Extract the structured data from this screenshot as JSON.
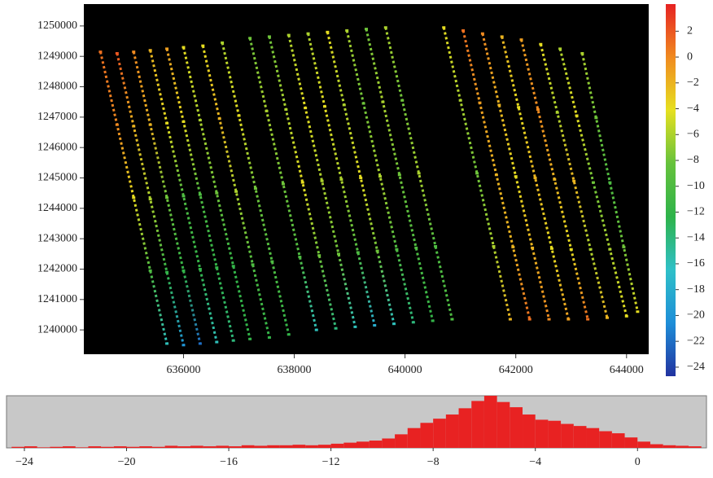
{
  "chart_data": [
    {
      "type": "scatter",
      "background": "#000000",
      "xlim": [
        634200,
        644400
      ],
      "ylim": [
        1239200,
        1250720
      ],
      "xticks": [
        636000,
        638000,
        640000,
        642000,
        644000
      ],
      "yticks": [
        1240000,
        1241000,
        1242000,
        1243000,
        1244000,
        1245000,
        1246000,
        1247000,
        1248000,
        1249000,
        1250000
      ],
      "colorbar": {
        "clim": [
          -24.7,
          4.1
        ],
        "colormap": [
          "#2233a0",
          "#1e8ed8",
          "#2fc0c8",
          "#2eb34a",
          "#66c23c",
          "#e6e020",
          "#f08a20",
          "#e62222"
        ],
        "ticks": [
          2,
          0,
          {
            "value": -2,
            "label": "−2"
          },
          {
            "value": -4,
            "label": "−4"
          },
          {
            "value": -6,
            "label": "−6"
          },
          {
            "value": -8,
            "label": "−8"
          },
          {
            "value": -10,
            "label": "−10"
          },
          {
            "value": -12,
            "label": "−12"
          },
          {
            "value": -14,
            "label": "−14"
          },
          {
            "value": -16,
            "label": "−16"
          },
          {
            "value": -18,
            "label": "−18"
          },
          {
            "value": -20,
            "label": "−20"
          },
          {
            "value": -22,
            "label": "−22"
          },
          {
            "value": -24,
            "label": "−24"
          }
        ]
      },
      "series": [
        {
          "x": [
            634500,
            634800,
            635100,
            635400,
            635700
          ],
          "y": [
            1249150,
            1246750,
            1244350,
            1241950,
            1239550
          ],
          "values": [
            1,
            0,
            -4,
            -10,
            -16
          ]
        },
        {
          "x": [
            634800,
            635100,
            635400,
            635700,
            636000
          ],
          "y": [
            1249100,
            1246700,
            1244300,
            1241900,
            1239500
          ],
          "values": [
            2,
            -2,
            -6,
            -12,
            -20
          ]
        },
        {
          "x": [
            635100,
            635400,
            635700,
            636000,
            636300
          ],
          "y": [
            1249150,
            1246750,
            1244350,
            1241950,
            1239550
          ],
          "values": [
            0,
            -2,
            -8,
            -12,
            -22
          ]
        },
        {
          "x": [
            635400,
            635700,
            636000,
            636300,
            636600
          ],
          "y": [
            1249200,
            1246800,
            1244400,
            1242000,
            1239600
          ],
          "values": [
            -2,
            -4,
            -10,
            -12,
            -16
          ]
        },
        {
          "x": [
            635700,
            636000,
            636300,
            636600,
            636900
          ],
          "y": [
            1249250,
            1246850,
            1244450,
            1242050,
            1239650
          ],
          "values": [
            -1,
            -4,
            -10,
            -12,
            -14
          ]
        },
        {
          "x": [
            636000,
            636300,
            636600,
            636900,
            637200
          ],
          "y": [
            1249300,
            1246900,
            1244500,
            1242100,
            1239700
          ],
          "values": [
            -4,
            -6,
            -8,
            -12,
            -12
          ]
        },
        {
          "x": [
            636350,
            636650,
            636950,
            637250,
            637550
          ],
          "y": [
            1249350,
            1246950,
            1244550,
            1242150,
            1239750
          ],
          "values": [
            -4,
            -2,
            -6,
            -10,
            -12
          ]
        },
        {
          "x": [
            636700,
            637000,
            637300,
            637600,
            637900
          ],
          "y": [
            1249450,
            1247050,
            1244650,
            1242250,
            1239850
          ],
          "values": [
            -6,
            -4,
            -8,
            -10,
            -12
          ]
        },
        {
          "x": [
            637200,
            637500,
            637800,
            638100,
            638400
          ],
          "y": [
            1249600,
            1247200,
            1244800,
            1242400,
            1240000
          ],
          "values": [
            -8,
            -6,
            -8,
            -10,
            -16
          ]
        },
        {
          "x": [
            637550,
            637850,
            638150,
            638450,
            638750
          ],
          "y": [
            1249650,
            1247250,
            1244850,
            1242450,
            1240050
          ],
          "values": [
            -8,
            -6,
            -4,
            -8,
            -14
          ]
        },
        {
          "x": [
            637900,
            638200,
            638500,
            638800,
            639100
          ],
          "y": [
            1249700,
            1247300,
            1244900,
            1242500,
            1240100
          ],
          "values": [
            -6,
            -4,
            -6,
            -8,
            -16
          ]
        },
        {
          "x": [
            638250,
            638550,
            638850,
            639150,
            639450
          ],
          "y": [
            1249750,
            1247350,
            1244950,
            1242550,
            1240150
          ],
          "values": [
            -6,
            -4,
            -6,
            -10,
            -18
          ]
        },
        {
          "x": [
            638600,
            638900,
            639200,
            639500,
            639800
          ],
          "y": [
            1249800,
            1247400,
            1245000,
            1242600,
            1240200
          ],
          "values": [
            -4,
            -6,
            -4,
            -8,
            -16
          ]
        },
        {
          "x": [
            638950,
            639250,
            639550,
            639850,
            640150
          ],
          "y": [
            1249850,
            1247450,
            1245050,
            1242650,
            1240250
          ],
          "values": [
            -6,
            -8,
            -6,
            -10,
            -14
          ]
        },
        {
          "x": [
            639300,
            639600,
            639900,
            640200,
            640500
          ],
          "y": [
            1249900,
            1247500,
            1245100,
            1242700,
            1240300
          ],
          "values": [
            -8,
            -6,
            -8,
            -10,
            -12
          ]
        },
        {
          "x": [
            639650,
            639950,
            640250,
            640550,
            640850
          ],
          "y": [
            1249950,
            1247550,
            1245150,
            1242750,
            1240350
          ],
          "values": [
            -6,
            -8,
            -6,
            -10,
            -10
          ]
        },
        {
          "x": [
            640700,
            641000,
            641300,
            641600,
            641900
          ],
          "y": [
            1249950,
            1247550,
            1245150,
            1242750,
            1240350
          ],
          "values": [
            -4,
            -6,
            -8,
            -6,
            -2
          ]
        },
        {
          "x": [
            641050,
            641350,
            641650,
            641950,
            642250
          ],
          "y": [
            1249850,
            1247475,
            1245100,
            1242725,
            1240350
          ],
          "values": [
            1,
            -1,
            -2,
            -2,
            1
          ]
        },
        {
          "x": [
            641400,
            641700,
            642000,
            642300,
            642600
          ],
          "y": [
            1249750,
            1247400,
            1245050,
            1242700,
            1240350
          ],
          "values": [
            0,
            -2,
            -4,
            -2,
            0
          ]
        },
        {
          "x": [
            641750,
            642050,
            642350,
            642650,
            642950
          ],
          "y": [
            1249650,
            1247325,
            1245000,
            1242675,
            1240350
          ],
          "values": [
            -2,
            -4,
            -2,
            -4,
            -1
          ]
        },
        {
          "x": [
            642100,
            642400,
            642700,
            643000,
            643300
          ],
          "y": [
            1249550,
            1247250,
            1244950,
            1242650,
            1240350
          ],
          "values": [
            -1,
            0,
            -2,
            -4,
            1
          ]
        },
        {
          "x": [
            642450,
            642750,
            643050,
            643350,
            643650
          ],
          "y": [
            1249400,
            1247150,
            1244900,
            1242650,
            1240400
          ],
          "values": [
            -4,
            -6,
            -2,
            -6,
            -2
          ]
        },
        {
          "x": [
            642800,
            643100,
            643400,
            643700,
            644000
          ],
          "y": [
            1249250,
            1247050,
            1244850,
            1242650,
            1240450
          ],
          "values": [
            -6,
            -4,
            -8,
            -6,
            -4
          ]
        },
        {
          "x": [
            643200,
            643450,
            643700,
            643950,
            644200
          ],
          "y": [
            1249100,
            1246975,
            1244850,
            1242725,
            1240600
          ],
          "values": [
            -6,
            -8,
            -10,
            -8,
            -4
          ]
        }
      ]
    },
    {
      "type": "histogram",
      "background": "#c8c8c8",
      "color": "#e82222",
      "xlim": [
        -24.7,
        2.7
      ],
      "ylim": [
        0,
        100
      ],
      "xticks": [
        {
          "value": -24,
          "label": "−24"
        },
        {
          "value": -20,
          "label": "−20"
        },
        {
          "value": -16,
          "label": "−16"
        },
        {
          "value": -12,
          "label": "−12"
        },
        {
          "value": -8,
          "label": "−8"
        },
        {
          "value": -4,
          "label": "−4"
        },
        0
      ],
      "bins": [
        -24.5,
        -24,
        -23.5,
        -23,
        -22.5,
        -22,
        -21.5,
        -21,
        -20.5,
        -20,
        -19.5,
        -19,
        -18.5,
        -18,
        -17.5,
        -17,
        -16.5,
        -16,
        -15.5,
        -15,
        -14.5,
        -14,
        -13.5,
        -13,
        -12.5,
        -12,
        -11.5,
        -11,
        -10.5,
        -10,
        -9.5,
        -9,
        -8.5,
        -8,
        -7.5,
        -7,
        -6.5,
        -6,
        -5.5,
        -5,
        -4.5,
        -4,
        -3.5,
        -3,
        -2.5,
        -2,
        -1.5,
        -1,
        -0.5,
        0,
        0.5,
        1,
        1.5,
        2,
        2.5
      ],
      "counts": [
        2,
        3,
        1,
        2,
        3,
        1,
        3,
        2,
        3,
        2,
        3,
        2,
        4,
        3,
        4,
        3,
        4,
        3,
        5,
        4,
        5,
        5,
        6,
        5,
        6,
        8,
        10,
        12,
        14,
        18,
        26,
        38,
        48,
        56,
        64,
        76,
        90,
        100,
        88,
        78,
        64,
        54,
        52,
        46,
        42,
        38,
        32,
        28,
        20,
        12,
        7,
        5,
        4,
        3
      ]
    }
  ]
}
